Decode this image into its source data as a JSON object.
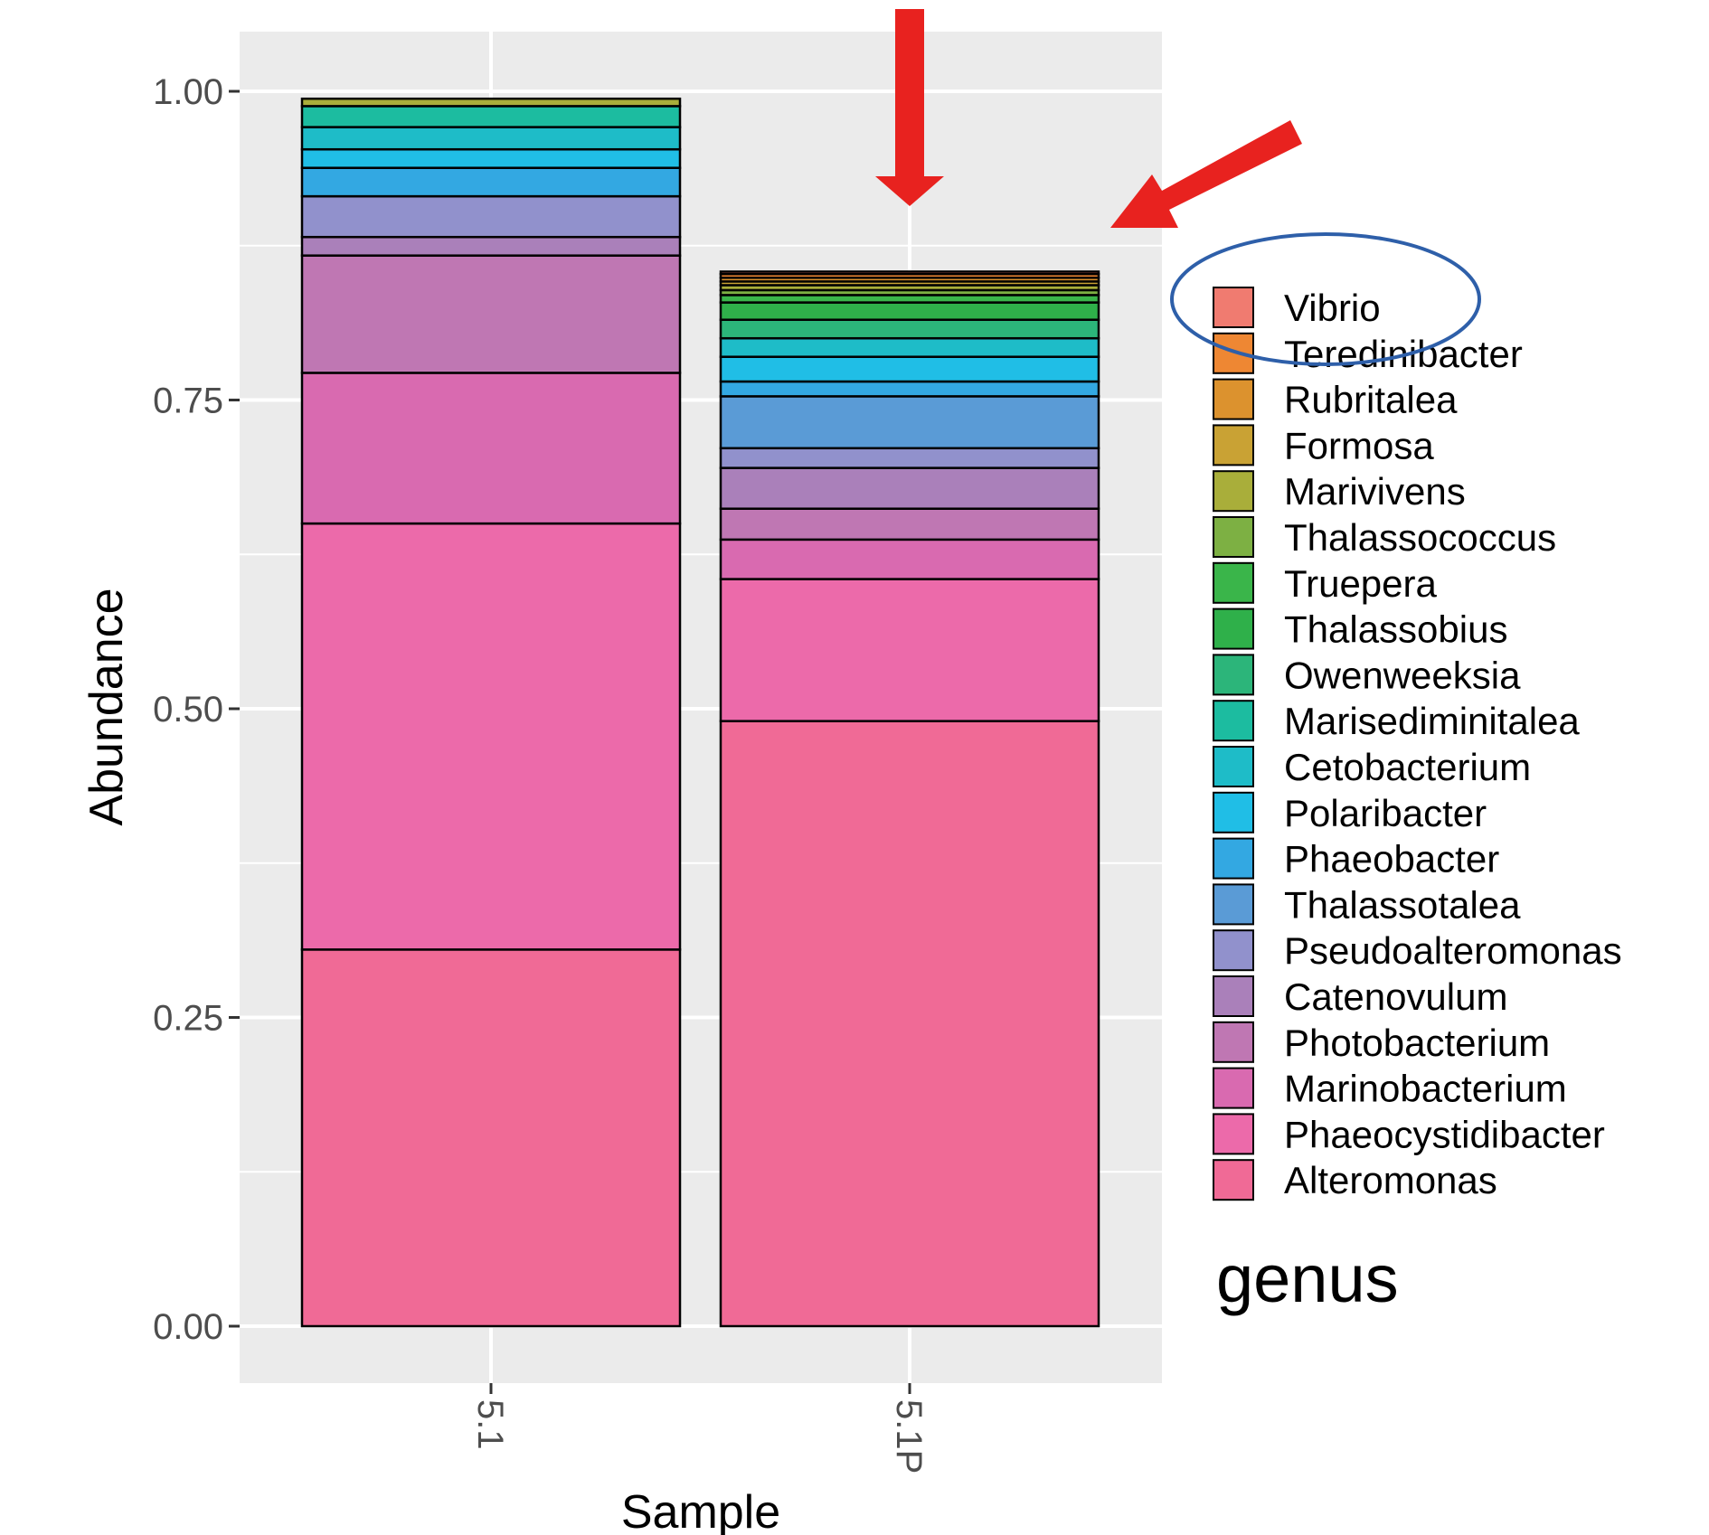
{
  "chart_data": {
    "type": "bar",
    "stacked": true,
    "categories": [
      "5.1",
      "5.1P"
    ],
    "xlabel": "Sample",
    "ylabel": "Abundance",
    "ylim": [
      0,
      1.05
    ],
    "yticks": [
      "0.00",
      "0.25",
      "0.50",
      "0.75",
      "1.00"
    ],
    "grid": true,
    "legend_title": "genus",
    "legend_position": "right",
    "series": [
      {
        "name": "Alteromonas",
        "color": "#F06A96",
        "values": [
          0.305,
          0.49
        ]
      },
      {
        "name": "Phaeocystidibacter",
        "color": "#EC6AAA",
        "values": [
          0.345,
          0.115
        ]
      },
      {
        "name": "Marinobacterium",
        "color": "#D96AB0",
        "values": [
          0.122,
          0.032
        ]
      },
      {
        "name": "Photobacterium",
        "color": "#BF77B3",
        "values": [
          0.095,
          0.025
        ]
      },
      {
        "name": "Catenovulum",
        "color": "#AA80BA",
        "values": [
          0.015,
          0.033
        ]
      },
      {
        "name": "Pseudoalteromonas",
        "color": "#9191CC",
        "values": [
          0.033,
          0.016
        ]
      },
      {
        "name": "Thalassotalea",
        "color": "#5A9BD6",
        "values": [
          0.0,
          0.042
        ]
      },
      {
        "name": "Phaeobacter",
        "color": "#33A8E2",
        "values": [
          0.023,
          0.012
        ]
      },
      {
        "name": "Polaribacter",
        "color": "#20BEE6",
        "values": [
          0.015,
          0.02
        ]
      },
      {
        "name": "Cetobacterium",
        "color": "#1EBCC8",
        "values": [
          0.018,
          0.015
        ]
      },
      {
        "name": "Marisediminitalea",
        "color": "#1CBCA0",
        "values": [
          0.017,
          0.0
        ]
      },
      {
        "name": "Owenweeksia",
        "color": "#2CB57A",
        "values": [
          0.0,
          0.015
        ]
      },
      {
        "name": "Thalassobius",
        "color": "#2FB04A",
        "values": [
          0.0,
          0.014
        ]
      },
      {
        "name": "Truepera",
        "color": "#3AB54A",
        "values": [
          0.0,
          0.006
        ]
      },
      {
        "name": "Thalassococcus",
        "color": "#7DB043",
        "values": [
          0.0,
          0.004
        ]
      },
      {
        "name": "Marivivens",
        "color": "#A9AE3A",
        "values": [
          0.006,
          0.004
        ]
      },
      {
        "name": "Formosa",
        "color": "#C9A234",
        "values": [
          0.0,
          0.003
        ]
      },
      {
        "name": "Rubritalea",
        "color": "#DC922E",
        "values": [
          0.0,
          0.003
        ]
      },
      {
        "name": "Teredinibacter",
        "color": "#EE8733",
        "values": [
          0.0,
          0.003
        ]
      },
      {
        "name": "Vibrio",
        "color": "#F07B70",
        "values": [
          0.0,
          0.002
        ]
      }
    ],
    "annotations": [
      {
        "type": "arrow",
        "color": "#E8221F",
        "direction": "down",
        "target": "5.1P bar top"
      },
      {
        "type": "arrow",
        "color": "#E8221F",
        "direction": "left-down",
        "target": "5.1P bar top"
      },
      {
        "type": "ellipse",
        "color": "#2E5FA9",
        "target": "Vibrio legend entry"
      }
    ]
  }
}
